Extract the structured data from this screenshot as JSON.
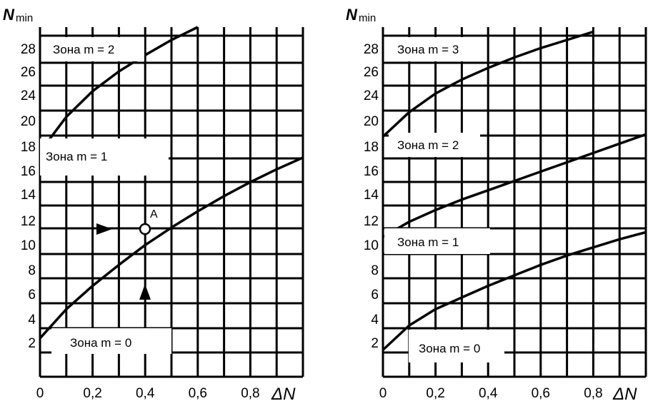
{
  "chart_data": [
    {
      "type": "line",
      "ylabel": "N",
      "ylabel_sub": "min",
      "xlabel": "ΔN",
      "x_ticks": [
        "0",
        "0,2",
        "0,4",
        "0,6",
        "0,8"
      ],
      "y_ticks": [
        "2",
        "4",
        "6",
        "8",
        "10",
        "12",
        "14",
        "16",
        "18",
        "20",
        "24",
        "26",
        "28"
      ],
      "xlim": [
        0,
        1.0
      ],
      "ylim": [
        0,
        30
      ],
      "grid": true,
      "series": [
        {
          "x": [
            0,
            0.1,
            0.2,
            0.3,
            0.4,
            0.5,
            0.6,
            0.7,
            0.8,
            0.9,
            1.0
          ],
          "y": [
            3.3,
            5.8,
            7.8,
            9.6,
            11.3,
            12.8,
            14.2,
            15.5,
            16.7,
            17.8,
            18.8
          ]
        },
        {
          "x": [
            0,
            0.1,
            0.2,
            0.3,
            0.4,
            0.5,
            0.6
          ],
          "y": [
            19.3,
            22.3,
            24.5,
            26.2,
            27.6,
            28.9,
            30.0
          ]
        }
      ],
      "zones": [
        "Зона m = 0",
        "Зона m = 1",
        "Зона m = 2"
      ],
      "annotations": [
        {
          "text": "A",
          "x": 0.4,
          "y": 12
        }
      ]
    },
    {
      "type": "line",
      "ylabel": "N",
      "ylabel_sub": "min",
      "xlabel": "ΔN",
      "x_ticks": [
        "0",
        "0,2",
        "0,4",
        "0,6",
        "0,8"
      ],
      "y_ticks": [
        "2",
        "4",
        "6",
        "8",
        "10",
        "12",
        "14",
        "16",
        "18",
        "20",
        "24",
        "26",
        "28"
      ],
      "xlim": [
        0,
        1.0
      ],
      "ylim": [
        0,
        30
      ],
      "grid": true,
      "series": [
        {
          "x": [
            0,
            0.1,
            0.2,
            0.3,
            0.4,
            0.5,
            0.6,
            0.7,
            0.8,
            0.9,
            1.0
          ],
          "y": [
            2.3,
            4.4,
            5.8,
            6.8,
            7.8,
            8.7,
            9.6,
            10.4,
            11.1,
            11.8,
            12.4
          ]
        },
        {
          "x": [
            0,
            0.1,
            0.2,
            0.3,
            0.4,
            0.5,
            0.6,
            0.7,
            0.8,
            0.9,
            1.0
          ],
          "y": [
            12.0,
            13.3,
            14.3,
            15.2,
            16.0,
            16.8,
            17.6,
            18.4,
            19.2,
            20.0,
            20.8
          ]
        },
        {
          "x": [
            0,
            0.1,
            0.2,
            0.3,
            0.4,
            0.5,
            0.6,
            0.7,
            0.8
          ],
          "y": [
            20.6,
            22.7,
            24.3,
            25.5,
            26.5,
            27.4,
            28.2,
            28.9,
            29.6
          ]
        }
      ],
      "zones": [
        "Зона m = 0",
        "Зона m = 1",
        "Зона m = 2",
        "Зона m = 3"
      ]
    }
  ]
}
